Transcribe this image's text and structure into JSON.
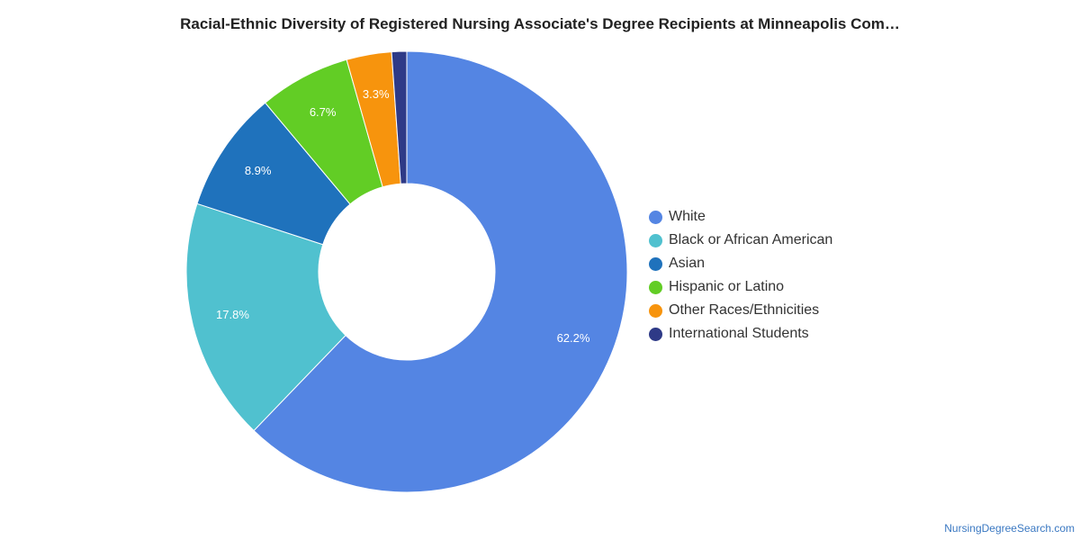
{
  "title": "Racial-Ethnic Diversity of Registered Nursing Associate's Degree Recipients at Minneapolis Com…",
  "watermark": "NursingDegreeSearch.com",
  "chart_data": {
    "type": "pie",
    "title": "Racial-Ethnic Diversity of Registered Nursing Associate's Degree Recipients at Minneapolis Com…",
    "categories": [
      "White",
      "Black or African American",
      "Asian",
      "Hispanic or Latino",
      "Other Races/Ethnicities",
      "International Students"
    ],
    "values": [
      62.2,
      17.8,
      8.9,
      6.7,
      3.3,
      1.1
    ],
    "data_labels": [
      "62.2%",
      "17.8%",
      "8.9%",
      "6.7%",
      "3.3%",
      ""
    ],
    "colors": [
      "#5485e3",
      "#50c1cf",
      "#1f72bc",
      "#62cd25",
      "#f7940d",
      "#2e3a87"
    ],
    "donut": true,
    "legend_position": "right"
  }
}
